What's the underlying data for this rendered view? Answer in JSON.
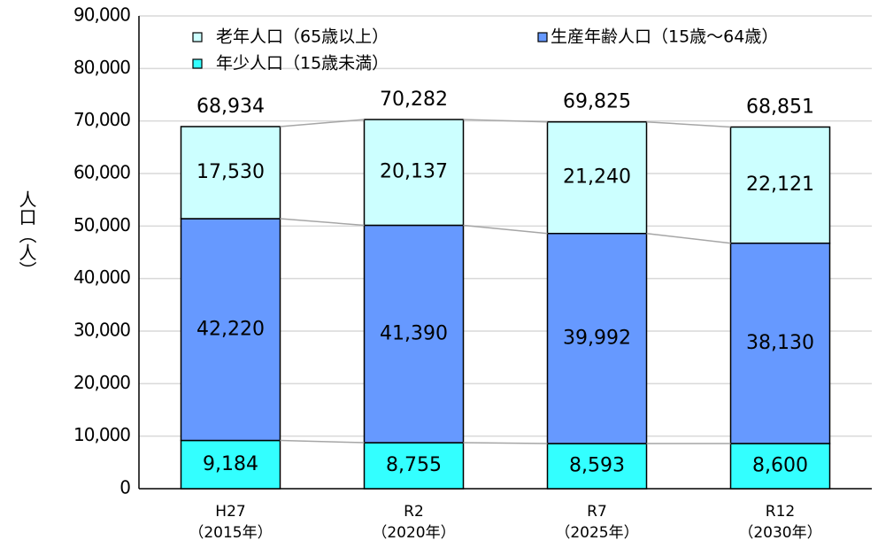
{
  "chart_data": {
    "type": "stacked_bar",
    "y_label": "人口（人）",
    "categories": [
      [
        "H27",
        "（2015年）"
      ],
      [
        "R2",
        "（2020年）"
      ],
      [
        "R7",
        "（2025年）"
      ],
      [
        "R12",
        "（2030年）"
      ]
    ],
    "series": [
      {
        "name": "年少人口（15歳未満）",
        "color": "#33ffff",
        "values": [
          9184,
          8755,
          8593,
          8600
        ],
        "value_labels": [
          "9,184",
          "8,755",
          "8,593",
          "8,600"
        ]
      },
      {
        "name": "生産年齢人口（15歳～64歳）",
        "color": "#6699ff",
        "values": [
          42220,
          41390,
          39992,
          38130
        ],
        "value_labels": [
          "42,220",
          "41,390",
          "39,992",
          "38,130"
        ]
      },
      {
        "name": "老年人口（65歳以上）",
        "color": "#ccffff",
        "values": [
          17530,
          20137,
          21240,
          22121
        ],
        "value_labels": [
          "17,530",
          "20,137",
          "21,240",
          "22,121"
        ]
      }
    ],
    "totals": {
      "values": [
        68934,
        70282,
        69825,
        68851
      ],
      "value_labels": [
        "68,934",
        "70,282",
        "69,825",
        "68,851"
      ]
    },
    "ylim": [
      0,
      90000
    ],
    "yticks": [
      0,
      {
        "value": 10000,
        "label": "10,000"
      },
      {
        "value": 20000,
        "label": "20,000"
      },
      {
        "value": 30000,
        "label": "30,000"
      },
      {
        "value": 40000,
        "label": "40,000"
      },
      {
        "value": 50000,
        "label": "50,000"
      },
      {
        "value": 60000,
        "label": "60,000"
      },
      {
        "value": 70000,
        "label": "70,000"
      },
      {
        "value": 80000,
        "label": "80,000"
      },
      {
        "value": 90000,
        "label": "90,000"
      }
    ],
    "grid": true
  }
}
